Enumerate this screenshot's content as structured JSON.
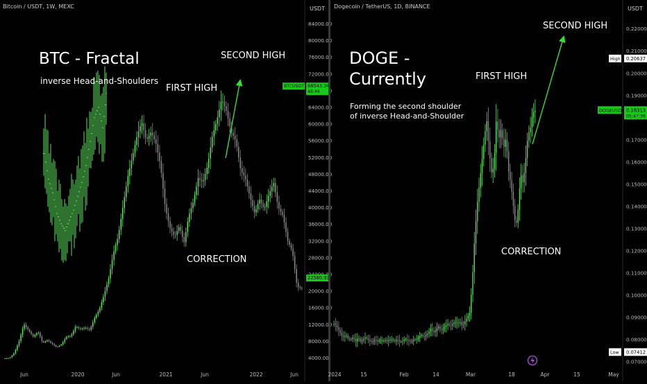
{
  "colors": {
    "background": "#000000",
    "up_candle": "#5ee35e",
    "down_candle": "#8c8c8c",
    "annotation_text": "#ffffff",
    "arrow": "#33dd33",
    "axis_text": "#bdbdbd",
    "divider": "#2a2a2a",
    "price_tag": "#19c919"
  },
  "chart_data": [
    {
      "type": "candlestick",
      "panel": "left",
      "header": "Bitcoin / USDT, 1W, MEXC",
      "currency_label": "USDT",
      "y_ticks": [
        "84000.00",
        "80000.00",
        "76000.00",
        "72000.00",
        "68000.00",
        "64000.00",
        "60000.00",
        "56000.00",
        "52000.00",
        "48000.00",
        "44000.00",
        "40000.00",
        "36000.00",
        "32000.00",
        "28000.00",
        "24000.00",
        "20000.00",
        "16000.00",
        "12000.00",
        "8000.00",
        "4000.00"
      ],
      "x_ticks": [
        "Jun",
        "2020",
        "Jun",
        "2021",
        "Jun",
        "2022",
        "Jun"
      ],
      "ylim": [
        2000,
        86000
      ],
      "price_tags": [
        {
          "symbol": "BTCUSDT",
          "price": "68543.34",
          "sub": "48:46",
          "value": 68543
        },
        {
          "symbol": "",
          "price": "22580.93",
          "sub": "",
          "value": 22580
        }
      ],
      "annotations": {
        "title": "BTC - Fractal",
        "subtitle": "inverse Head-and-Shoulders",
        "first_high": "FIRST HIGH",
        "second_high": "SECOND HIGH",
        "correction": "CORRECTION"
      },
      "path": [
        3800,
        3900,
        5200,
        8000,
        12000,
        10500,
        9000,
        10200,
        7500,
        8200,
        7300,
        6500,
        7200,
        9000,
        9200,
        11500,
        10800,
        11200,
        10600,
        13500,
        15500,
        19000,
        23000,
        29000,
        33000,
        40000,
        47000,
        52000,
        57000,
        60500,
        56000,
        58000,
        55500,
        50000,
        40000,
        35000,
        33000,
        35500,
        31500,
        38000,
        41500,
        47000,
        46000,
        50000,
        57000,
        61000,
        66000,
        63000,
        58000,
        56000,
        49000,
        47000,
        42500,
        38500,
        42000,
        39500,
        43000,
        46000,
        40000,
        38000,
        32000,
        29500,
        21000,
        20500
      ],
      "inset": {
        "description": "fractal",
        "path": [
          65,
          50,
          42,
          30,
          24,
          20,
          26,
          32,
          40,
          48,
          58,
          72,
          86,
          92,
          80,
          100
        ],
        "vmin": 0,
        "vmax": 100
      }
    },
    {
      "type": "candlestick",
      "panel": "right",
      "header": "Dogecoin / TetherUS, 1D, BINANCE",
      "currency_label": "USDT",
      "y_ticks": [
        "0.22000",
        "0.21000",
        "0.20000",
        "0.19000",
        "0.18000",
        "0.17000",
        "0.16000",
        "0.15000",
        "0.14000",
        "0.13000",
        "0.12000",
        "0.11000",
        "0.10000",
        "0.09000",
        "0.08000",
        "0.07000"
      ],
      "x_ticks": [
        "2024",
        "15",
        "Feb",
        "14",
        "Mar",
        "18",
        "Apr",
        "15",
        "May"
      ],
      "ylim": [
        0.068,
        0.226
      ],
      "price_tags": [
        {
          "symbol": "High",
          "price": "0.20637",
          "sub": "",
          "value": 0.20637
        },
        {
          "symbol": "DOGEUSDT",
          "price": "0.18313",
          "sub": "05:47:36",
          "value": 0.18313
        },
        {
          "symbol": "Low",
          "price": "0.07412",
          "sub": "",
          "value": 0.07412
        }
      ],
      "annotations": {
        "title_line1": "DOGE -",
        "title_line2": "Currently",
        "note_line1": "Forming the second shoulder",
        "note_line2": "of inverse Head-and-Shoulder",
        "first_high": "FIRST HIGH",
        "second_high": "SECOND HIGH",
        "correction": "CORRECTION"
      },
      "path": [
        0.087,
        0.086,
        0.084,
        0.082,
        0.081,
        0.082,
        0.08,
        0.08,
        0.081,
        0.079,
        0.081,
        0.079,
        0.08,
        0.081,
        0.08,
        0.079,
        0.079,
        0.08,
        0.079,
        0.08,
        0.079,
        0.08,
        0.079,
        0.08,
        0.08,
        0.079,
        0.08,
        0.079,
        0.079,
        0.08,
        0.08,
        0.079,
        0.079,
        0.08,
        0.08,
        0.081,
        0.082,
        0.081,
        0.082,
        0.083,
        0.085,
        0.083,
        0.084,
        0.086,
        0.084,
        0.085,
        0.086,
        0.087,
        0.086,
        0.087,
        0.088,
        0.087,
        0.088,
        0.086,
        0.088,
        0.09,
        0.092,
        0.105,
        0.125,
        0.14,
        0.15,
        0.16,
        0.17,
        0.179,
        0.165,
        0.155,
        0.158,
        0.18,
        0.17,
        0.175,
        0.166,
        0.171,
        0.156,
        0.15,
        0.14,
        0.13,
        0.139,
        0.155,
        0.15,
        0.16,
        0.172,
        0.175,
        0.182,
        0.1831
      ]
    }
  ]
}
